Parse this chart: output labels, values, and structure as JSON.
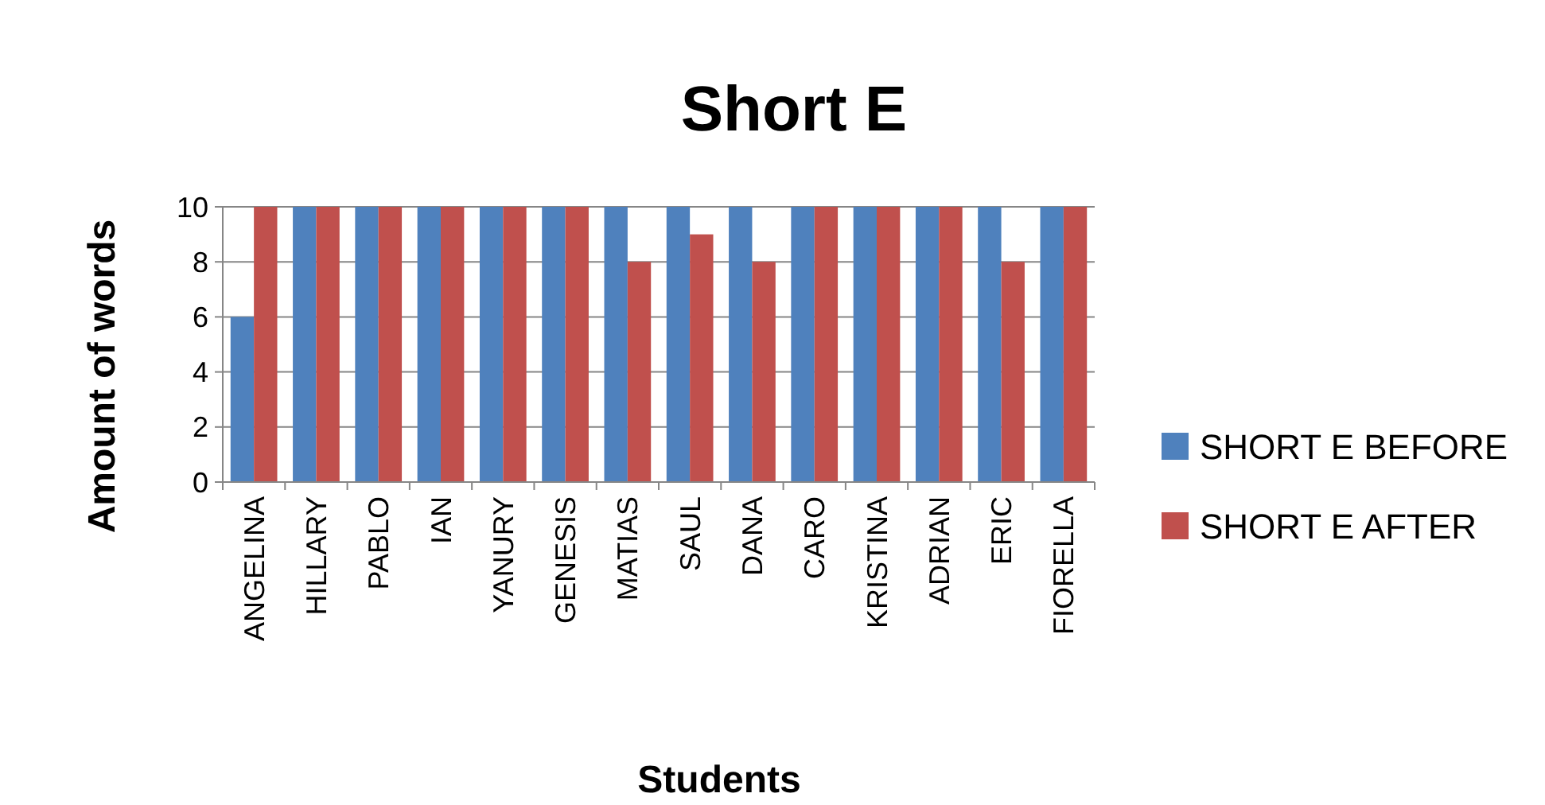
{
  "chart_data": {
    "type": "bar",
    "title": "Short E",
    "xlabel": "Students",
    "ylabel": "Amount of words",
    "categories": [
      "ANGELINA",
      "HILLARY",
      "PABLO",
      "IAN",
      "YANURY",
      "GENESIS",
      "MATIAS",
      "SAUL",
      "DANA",
      "CARO",
      "KRISTINA",
      "ADRIAN",
      "ERIC",
      "FIORELLA"
    ],
    "series": [
      {
        "name": "SHORT E BEFORE",
        "color": "#4f81bd",
        "values": [
          6,
          10,
          10,
          10,
          10,
          10,
          10,
          10,
          10,
          10,
          10,
          10,
          10,
          10
        ]
      },
      {
        "name": "SHORT E AFTER",
        "color": "#c0504d",
        "values": [
          10,
          10,
          10,
          10,
          10,
          10,
          8,
          9,
          8,
          10,
          10,
          10,
          8,
          10
        ]
      }
    ],
    "ylim": [
      0,
      10
    ],
    "yticks": [
      0,
      2,
      4,
      6,
      8,
      10
    ],
    "grid": "y",
    "legend": "right"
  }
}
